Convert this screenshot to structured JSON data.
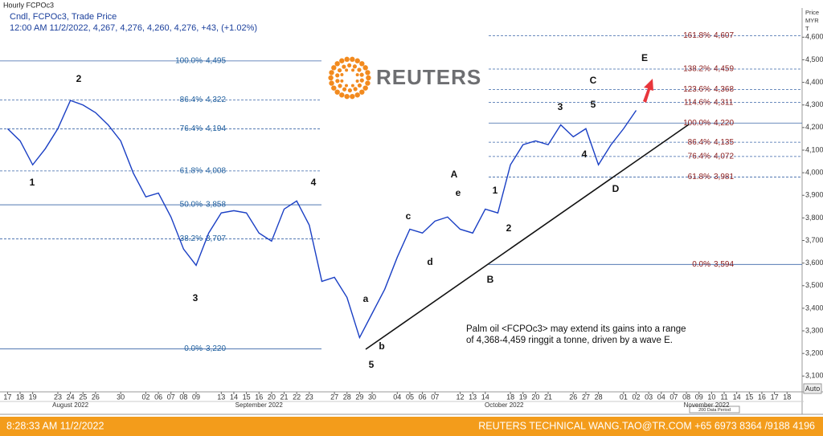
{
  "header": {
    "title": "Hourly FCPOc3",
    "line1": "Cndl, FCPOc3, Trade Price",
    "line2": "12:00 AM 11/2/2022, 4,267, 4,276, 4,260, 4,276, +43, (+1.02%)"
  },
  "logo": "REUTERS",
  "chart_data": {
    "type": "line",
    "color": "#1a3fc4",
    "x": [
      0,
      1,
      2,
      3,
      4,
      5,
      6,
      7,
      8,
      9,
      10,
      11,
      12,
      13,
      14,
      15,
      16,
      17,
      18,
      19,
      20,
      21,
      22,
      23,
      24,
      25,
      26,
      27,
      28,
      29,
      30,
      31,
      32,
      33,
      34,
      35,
      36,
      37,
      38,
      39,
      40,
      41,
      42,
      43,
      44,
      45,
      46,
      47,
      48,
      49,
      50
    ],
    "values": [
      4195,
      4141,
      4035,
      4106,
      4195,
      4320,
      4300,
      4266,
      4212,
      4141,
      3999,
      3893,
      3910,
      3804,
      3662,
      3590,
      3733,
      3822,
      3832,
      3822,
      3733,
      3697,
      3839,
      3875,
      3768,
      3519,
      3537,
      3448,
      3270,
      3377,
      3484,
      3626,
      3750,
      3733,
      3786,
      3804,
      3750,
      3733,
      3839,
      3822,
      4035,
      4124,
      4141,
      4124,
      4212,
      4159,
      4195,
      4035,
      4124,
      4195,
      4276
    ],
    "xlim": [
      -0.6,
      63.2
    ],
    "xticks": [
      {
        "value": 0,
        "label": "17"
      },
      {
        "value": 1,
        "label": "18"
      },
      {
        "value": 2,
        "label": "19"
      },
      {
        "value": 4,
        "label": "23"
      },
      {
        "value": 5,
        "label": "24"
      },
      {
        "value": 6,
        "label": "25"
      },
      {
        "value": 7,
        "label": "26"
      },
      {
        "value": 9,
        "label": "30"
      },
      {
        "value": 11,
        "label": "02"
      },
      {
        "value": 12,
        "label": "06"
      },
      {
        "value": 13,
        "label": "07"
      },
      {
        "value": 14,
        "label": "08"
      },
      {
        "value": 15,
        "label": "09"
      },
      {
        "value": 17,
        "label": "13"
      },
      {
        "value": 18,
        "label": "14"
      },
      {
        "value": 19,
        "label": "15"
      },
      {
        "value": 20,
        "label": "16"
      },
      {
        "value": 21,
        "label": "20"
      },
      {
        "value": 22,
        "label": "21"
      },
      {
        "value": 23,
        "label": "22"
      },
      {
        "value": 24,
        "label": "23"
      },
      {
        "value": 26,
        "label": "27"
      },
      {
        "value": 27,
        "label": "28"
      },
      {
        "value": 28,
        "label": "29"
      },
      {
        "value": 29,
        "label": "30"
      },
      {
        "value": 31,
        "label": "04"
      },
      {
        "value": 32,
        "label": "05"
      },
      {
        "value": 33,
        "label": "06"
      },
      {
        "value": 34,
        "label": "07"
      },
      {
        "value": 36,
        "label": "12"
      },
      {
        "value": 37,
        "label": "13"
      },
      {
        "value": 38,
        "label": "14"
      },
      {
        "value": 40,
        "label": "18"
      },
      {
        "value": 41,
        "label": "19"
      },
      {
        "value": 42,
        "label": "20"
      },
      {
        "value": 43,
        "label": "21"
      },
      {
        "value": 45,
        "label": "26"
      },
      {
        "value": 46,
        "label": "27"
      },
      {
        "value": 47,
        "label": "28"
      },
      {
        "value": 49,
        "label": "01"
      },
      {
        "value": 50,
        "label": "02"
      },
      {
        "value": 51,
        "label": "03"
      },
      {
        "value": 52,
        "label": "04"
      },
      {
        "value": 53,
        "label": "07"
      },
      {
        "value": 54,
        "label": "08"
      },
      {
        "value": 55,
        "label": "09"
      },
      {
        "value": 56,
        "label": "10"
      },
      {
        "value": 57,
        "label": "11"
      },
      {
        "value": 58,
        "label": "14"
      },
      {
        "value": 59,
        "label": "15"
      },
      {
        "value": 60,
        "label": "16"
      },
      {
        "value": 61,
        "label": "17"
      },
      {
        "value": 62,
        "label": "18"
      }
    ],
    "months": [
      {
        "value": 5,
        "label": "August 2022"
      },
      {
        "value": 20,
        "label": "September 2022"
      },
      {
        "value": 39.5,
        "label": "October 2022"
      },
      {
        "value": 55.6,
        "label": "November 2022"
      }
    ],
    "ylim": [
      3030,
      4722
    ],
    "yticks": [
      {
        "value": 3100,
        "label": "3,100"
      },
      {
        "value": 3200,
        "label": "3,200"
      },
      {
        "value": 3300,
        "label": "3,300"
      },
      {
        "value": 3400,
        "label": "3,400"
      },
      {
        "value": 3500,
        "label": "3,500"
      },
      {
        "value": 3600,
        "label": "3,600"
      },
      {
        "value": 3700,
        "label": "3,700"
      },
      {
        "value": 3800,
        "label": "3,800"
      },
      {
        "value": 3900,
        "label": "3,900"
      },
      {
        "value": 4000,
        "label": "4,000"
      },
      {
        "value": 4100,
        "label": "4,100"
      },
      {
        "value": 4200,
        "label": "4,200"
      },
      {
        "value": 4300,
        "label": "4,300"
      },
      {
        "value": 4400,
        "label": "4,400"
      },
      {
        "value": 4500,
        "label": "4,500"
      },
      {
        "value": 4600,
        "label": "4,600"
      }
    ],
    "y_axis_label": [
      "Price",
      "MYR",
      "T"
    ],
    "x_axis_button": "Auto",
    "data_period": "200 Data Period",
    "fib_left": [
      {
        "ratio": "100.0%",
        "value": 4495,
        "label": "4,495",
        "style": "solid"
      },
      {
        "ratio": "86.4%",
        "value": 4322,
        "label": "4,322",
        "style": "dashed"
      },
      {
        "ratio": "76.4%",
        "value": 4194,
        "label": "4,194",
        "style": "dashed"
      },
      {
        "ratio": "61.8%",
        "value": 4008,
        "label": "4,008",
        "style": "dashed"
      },
      {
        "ratio": "50.0%",
        "value": 3858,
        "label": "3,858",
        "style": "solid"
      },
      {
        "ratio": "38.2%",
        "value": 3707,
        "label": "3,707",
        "style": "dashed"
      },
      {
        "ratio": "0.0%",
        "value": 3220,
        "label": "3,220",
        "style": "solid"
      }
    ],
    "fib_right": [
      {
        "ratio": "161.8%",
        "value": 4607,
        "label": "4,607",
        "style": "dashed"
      },
      {
        "ratio": "138.2%",
        "value": 4459,
        "label": "4,459",
        "style": "dashed"
      },
      {
        "ratio": "123.6%",
        "value": 4368,
        "label": "4,368",
        "style": "dashed"
      },
      {
        "ratio": "114.6%",
        "value": 4311,
        "label": "4,311",
        "style": "dashed"
      },
      {
        "ratio": "100.0%",
        "value": 4220,
        "label": "4,220",
        "style": "solid"
      },
      {
        "ratio": "86.4%",
        "value": 4135,
        "label": "4,135",
        "style": "dashed"
      },
      {
        "ratio": "76.4%",
        "value": 4072,
        "label": "4,072",
        "style": "dashed"
      },
      {
        "ratio": "61.8%",
        "value": 3981,
        "label": "3,981",
        "style": "dashed"
      },
      {
        "ratio": "0.0%",
        "value": 3594,
        "label": "3,594",
        "style": "solid"
      }
    ],
    "wave_labels": [
      "1",
      "2",
      "3",
      "4",
      "5",
      "a",
      "b",
      "c",
      "d",
      "e",
      "A",
      "B",
      "1",
      "2",
      "3",
      "4",
      "5",
      "C",
      "D",
      "E"
    ],
    "annotation": [
      "Palm oil <FCPOc3> may extend its gains into a range",
      "of 4,368-4,459 ringgit a tonne, driven by a wave E."
    ]
  },
  "footer": {
    "left": "8:28:33 AM 11/2/2022",
    "right": "REUTERS TECHNICAL  WANG.TAO@TR.COM  +65 6973 8364 /9188 4196"
  }
}
